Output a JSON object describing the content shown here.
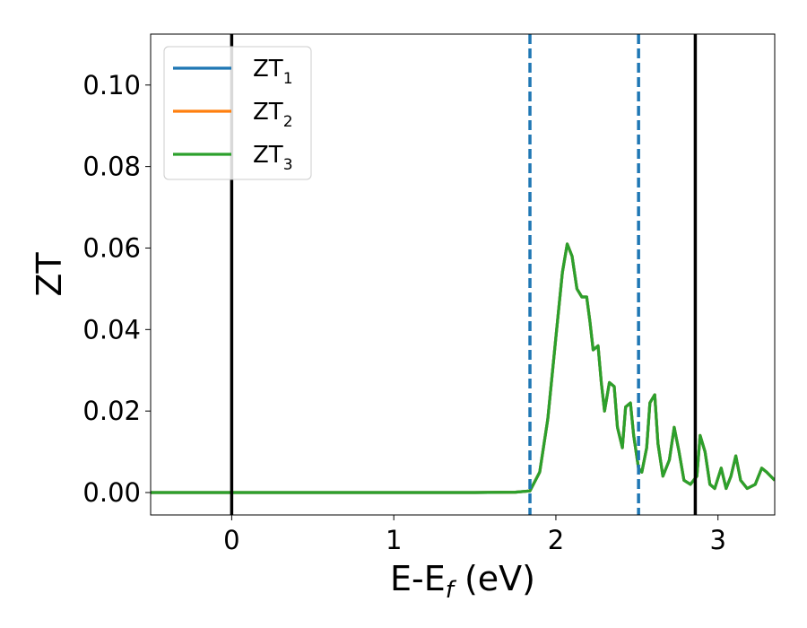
{
  "chart_data": {
    "type": "line",
    "xlabel": {
      "main": "E-E",
      "sub": "f",
      "unit": " (eV)"
    },
    "ylabel": "ZT",
    "xlim": [
      -0.5,
      3.35
    ],
    "ylim": [
      -0.0055,
      0.1125
    ],
    "x_ticks": [
      0,
      1,
      2,
      3
    ],
    "x_tick_labels": [
      "0",
      "1",
      "2",
      "3"
    ],
    "y_ticks": [
      0.0,
      0.02,
      0.04,
      0.06,
      0.08,
      0.1
    ],
    "y_tick_labels": [
      "0.00",
      "0.02",
      "0.04",
      "0.06",
      "0.08",
      "0.10"
    ],
    "grid": false,
    "legend_position": "top-left",
    "vlines": [
      {
        "x": 0.0,
        "style": "solid",
        "color": "#000000"
      },
      {
        "x": 2.86,
        "style": "solid",
        "color": "#000000"
      },
      {
        "x": 1.84,
        "style": "dashed",
        "color": "#1f77b4"
      },
      {
        "x": 2.51,
        "style": "dashed",
        "color": "#1f77b4"
      }
    ],
    "series": [
      {
        "base": "ZT",
        "sub": "1",
        "color": "#1f77b4",
        "x": [
          -0.5,
          0.0,
          0.5,
          1.0,
          1.5,
          1.75,
          1.84,
          1.9,
          1.95,
          2.0,
          2.04,
          2.07,
          2.1,
          2.13,
          2.16,
          2.19,
          2.21,
          2.23,
          2.26,
          2.28,
          2.3,
          2.33,
          2.36,
          2.38,
          2.41,
          2.43,
          2.46,
          2.48,
          2.51,
          2.53,
          2.56,
          2.58,
          2.61,
          2.63,
          2.66,
          2.7,
          2.73,
          2.76,
          2.79,
          2.83,
          2.87,
          2.89,
          2.92,
          2.95,
          2.98,
          3.02,
          3.05,
          3.08,
          3.11,
          3.14,
          3.18,
          3.23,
          3.27,
          3.3,
          3.35
        ],
        "y": [
          0.0,
          0.0,
          0.0,
          0.0,
          0.0,
          0.0001,
          0.0004,
          0.005,
          0.018,
          0.038,
          0.054,
          0.061,
          0.058,
          0.05,
          0.048,
          0.048,
          0.042,
          0.035,
          0.036,
          0.027,
          0.02,
          0.027,
          0.026,
          0.016,
          0.011,
          0.021,
          0.022,
          0.014,
          0.006,
          0.005,
          0.011,
          0.022,
          0.024,
          0.012,
          0.004,
          0.008,
          0.016,
          0.01,
          0.003,
          0.002,
          0.004,
          0.014,
          0.01,
          0.002,
          0.001,
          0.006,
          0.001,
          0.004,
          0.009,
          0.003,
          0.001,
          0.002,
          0.006,
          0.005,
          0.003
        ]
      },
      {
        "base": "ZT",
        "sub": "2",
        "color": "#ff7f0e",
        "x": [
          -0.5,
          0.0,
          0.5,
          1.0,
          1.5,
          1.75,
          1.84,
          1.9,
          1.95,
          2.0,
          2.04,
          2.07,
          2.1,
          2.13,
          2.16,
          2.19,
          2.21,
          2.23,
          2.26,
          2.28,
          2.3,
          2.33,
          2.36,
          2.38,
          2.41,
          2.43,
          2.46,
          2.48,
          2.51,
          2.53,
          2.56,
          2.58,
          2.61,
          2.63,
          2.66,
          2.7,
          2.73,
          2.76,
          2.79,
          2.83,
          2.87,
          2.89,
          2.92,
          2.95,
          2.98,
          3.02,
          3.05,
          3.08,
          3.11,
          3.14,
          3.18,
          3.23,
          3.27,
          3.3,
          3.35
        ],
        "y": [
          0.0,
          0.0,
          0.0,
          0.0,
          0.0,
          0.0001,
          0.0004,
          0.005,
          0.018,
          0.038,
          0.054,
          0.061,
          0.058,
          0.05,
          0.048,
          0.048,
          0.042,
          0.035,
          0.036,
          0.027,
          0.02,
          0.027,
          0.026,
          0.016,
          0.011,
          0.021,
          0.022,
          0.014,
          0.006,
          0.005,
          0.011,
          0.022,
          0.024,
          0.012,
          0.004,
          0.008,
          0.016,
          0.01,
          0.003,
          0.002,
          0.004,
          0.014,
          0.01,
          0.002,
          0.001,
          0.006,
          0.001,
          0.004,
          0.009,
          0.003,
          0.001,
          0.002,
          0.006,
          0.005,
          0.003
        ]
      },
      {
        "base": "ZT",
        "sub": "3",
        "color": "#2ca02c",
        "x": [
          -0.5,
          0.0,
          0.5,
          1.0,
          1.5,
          1.75,
          1.84,
          1.9,
          1.95,
          2.0,
          2.04,
          2.07,
          2.1,
          2.13,
          2.16,
          2.19,
          2.21,
          2.23,
          2.26,
          2.28,
          2.3,
          2.33,
          2.36,
          2.38,
          2.41,
          2.43,
          2.46,
          2.48,
          2.51,
          2.53,
          2.56,
          2.58,
          2.61,
          2.63,
          2.66,
          2.7,
          2.73,
          2.76,
          2.79,
          2.83,
          2.87,
          2.89,
          2.92,
          2.95,
          2.98,
          3.02,
          3.05,
          3.08,
          3.11,
          3.14,
          3.18,
          3.23,
          3.27,
          3.3,
          3.35
        ],
        "y": [
          0.0,
          0.0,
          0.0,
          0.0,
          0.0,
          0.0001,
          0.0004,
          0.005,
          0.018,
          0.038,
          0.054,
          0.061,
          0.058,
          0.05,
          0.048,
          0.048,
          0.042,
          0.035,
          0.036,
          0.027,
          0.02,
          0.027,
          0.026,
          0.016,
          0.011,
          0.021,
          0.022,
          0.014,
          0.006,
          0.005,
          0.011,
          0.022,
          0.024,
          0.012,
          0.004,
          0.008,
          0.016,
          0.01,
          0.003,
          0.002,
          0.004,
          0.014,
          0.01,
          0.002,
          0.001,
          0.006,
          0.001,
          0.004,
          0.009,
          0.003,
          0.001,
          0.002,
          0.006,
          0.005,
          0.003
        ]
      }
    ]
  }
}
